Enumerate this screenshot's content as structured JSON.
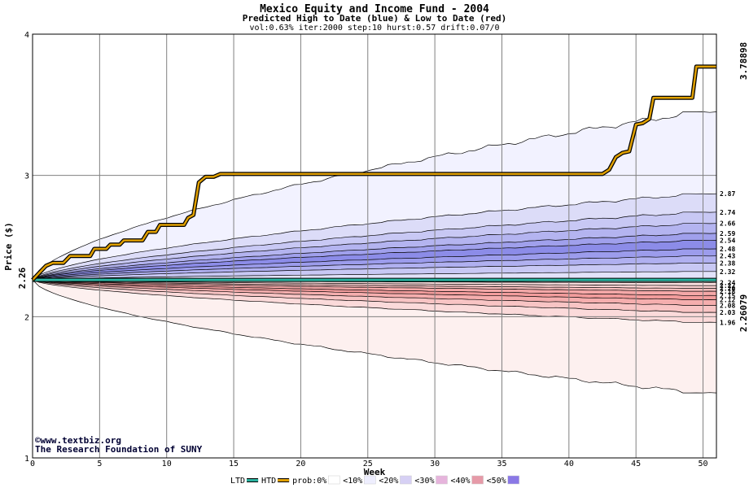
{
  "colors": {
    "background": "#ffffff",
    "plot_bg": "#ffffff",
    "grid": "#808080",
    "high_line": "#e0a000",
    "high_outline": "#000000",
    "ltd_line": "#2ab3a0",
    "end_high_label": "#b08000",
    "end_low_label": "#2a9a8a",
    "credit": "#000033"
  },
  "chart_data": {
    "type": "area",
    "title": "Mexico Equity and Income Fund - 2004",
    "subtitle": "Predicted High to Date (blue) &  Low to Date (red)",
    "params_text": "vol:0.63% iter:2000 step:10 hurst:0.57 drift:0.07/0",
    "xlabel": "Week",
    "ylabel": "Price ($)",
    "xlim": [
      0,
      51
    ],
    "ylim": [
      1,
      4
    ],
    "x_ticks": [
      0,
      5,
      10,
      15,
      20,
      25,
      30,
      35,
      40,
      45,
      50
    ],
    "y_ticks": [
      1,
      2,
      3,
      4
    ],
    "grid": true,
    "start_price": 2.26,
    "start_label": "2.26",
    "end_high_value": 3.78898,
    "end_high_label": "3.78898",
    "end_low_value": 2.26079,
    "end_low_label": "2.26079",
    "high_bands": [
      {
        "end": 3.45,
        "fill": "#f2f2ff",
        "label": ""
      },
      {
        "end": 2.87,
        "fill": "#dcdcf8",
        "label": "2.87"
      },
      {
        "end": 2.74,
        "fill": "#c8c8f4",
        "label": "2.74"
      },
      {
        "end": 2.66,
        "fill": "#b4b4f0",
        "label": "2.66"
      },
      {
        "end": 2.59,
        "fill": "#a0a0ec",
        "label": "2.59"
      },
      {
        "end": 2.54,
        "fill": "#8c8ce8",
        "label": "2.54"
      },
      {
        "end": 2.48,
        "fill": "#9c9cec",
        "label": "2.48"
      },
      {
        "end": 2.43,
        "fill": "#b0b0f0",
        "label": "2.43"
      },
      {
        "end": 2.38,
        "fill": "#c8c8f4",
        "label": "2.38"
      },
      {
        "end": 2.32,
        "fill": "#e2e2fa",
        "label": "2.32"
      }
    ],
    "low_bands": [
      {
        "end": 1.46,
        "fill": "#fdf0ef",
        "label": ""
      },
      {
        "end": 1.96,
        "fill": "#fbdada",
        "label": "1.96"
      },
      {
        "end": 2.03,
        "fill": "#f8c4c4",
        "label": "2.03"
      },
      {
        "end": 2.08,
        "fill": "#f5aeae",
        "label": "2.08"
      },
      {
        "end": 2.12,
        "fill": "#f29c9c",
        "label": "2.12"
      },
      {
        "end": 2.15,
        "fill": "#f4a8a8",
        "label": "2.15"
      },
      {
        "end": 2.18,
        "fill": "#f7bcbc",
        "label": "2.18"
      },
      {
        "end": 2.2,
        "fill": "#fad0d0",
        "label": "2.20"
      },
      {
        "end": 2.22,
        "fill": "#fce2e2",
        "label": "2.22"
      },
      {
        "end": 2.24,
        "fill": "#fdeeee",
        "label": "2.24"
      }
    ],
    "high_to_date": [
      [
        0,
        2.26
      ],
      [
        0.5,
        2.31
      ],
      [
        1,
        2.36
      ],
      [
        1.5,
        2.38
      ],
      [
        2.3,
        2.38
      ],
      [
        2.8,
        2.43
      ],
      [
        4.3,
        2.43
      ],
      [
        4.6,
        2.48
      ],
      [
        5.5,
        2.48
      ],
      [
        5.8,
        2.51
      ],
      [
        6.5,
        2.51
      ],
      [
        6.8,
        2.54
      ],
      [
        8.2,
        2.54
      ],
      [
        8.6,
        2.6
      ],
      [
        9.2,
        2.6
      ],
      [
        9.5,
        2.65
      ],
      [
        10,
        2.65
      ],
      [
        11.3,
        2.65
      ],
      [
        11.6,
        2.7
      ],
      [
        12,
        2.72
      ],
      [
        12.4,
        2.95
      ],
      [
        12.9,
        2.99
      ],
      [
        13.5,
        2.99
      ],
      [
        14,
        3.01
      ],
      [
        42.5,
        3.01
      ],
      [
        43,
        3.04
      ],
      [
        43.5,
        3.13
      ],
      [
        44,
        3.16
      ],
      [
        44.5,
        3.17
      ],
      [
        45,
        3.36
      ],
      [
        45.5,
        3.37
      ],
      [
        46,
        3.4
      ],
      [
        46.3,
        3.55
      ],
      [
        48,
        3.55
      ],
      [
        49.2,
        3.55
      ],
      [
        49.5,
        3.77
      ],
      [
        51,
        3.77
      ]
    ],
    "legend": [
      {
        "label": "LTD",
        "kind": "line",
        "color": "#2ab3a0"
      },
      {
        "label": "HTD",
        "kind": "line",
        "color": "#e0a000"
      },
      {
        "label": "prob:0%",
        "kind": "swatch",
        "color": "#ffffff"
      },
      {
        "label": "<10%",
        "kind": "swatch",
        "color": "#eeeefe"
      },
      {
        "label": "<20%",
        "kind": "swatch",
        "color": "#d6d0f4"
      },
      {
        "label": "<30%",
        "kind": "swatch",
        "color": "#e6b4dc"
      },
      {
        "label": "<40%",
        "kind": "swatch",
        "color": "#e69aa8"
      },
      {
        "label": "<50%",
        "kind": "swatch",
        "color": "#8a78e6"
      }
    ]
  },
  "credit": {
    "line1": "©www.textbiz.org",
    "line2": "The Research Foundation of SUNY"
  }
}
